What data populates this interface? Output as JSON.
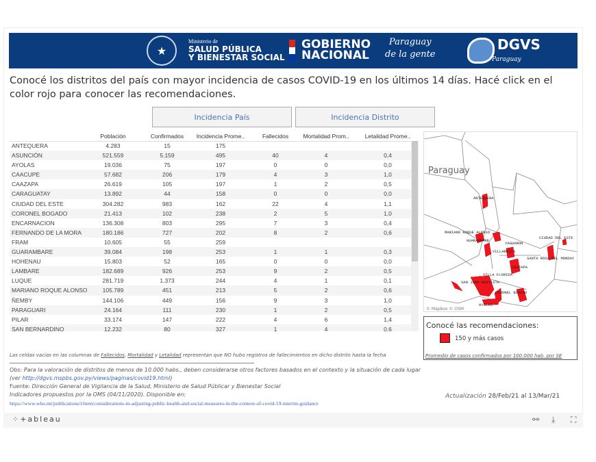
{
  "banner": {
    "ministry_small": "Ministerio de",
    "ministry_line1": "SALUD PÚBLICA",
    "ministry_line2": "Y BIENESTAR SOCIAL",
    "gob_line1": "GOBIERNO",
    "gob_line2": "NACIONAL",
    "slogan_line1": "Paraguay",
    "slogan_line2": "de la gente",
    "dgvs": "DGVS",
    "dgvs_sub": "Paraguay"
  },
  "heading": "Conocé los distritos del país con mayor incidencia de casos COVID-19 en los últimos 14 días. Hacé click en el color rojo para conocer las recomendaciones.",
  "tabs": [
    {
      "label": "Incidencia País"
    },
    {
      "label": "Incidencia Distrito"
    }
  ],
  "table": {
    "columns": [
      "",
      "Población",
      "Confirmados",
      "Incidencia Prome..",
      "Fallecidos",
      "Mortalidad Prom..",
      "Letalidad Prome.."
    ],
    "rows": [
      [
        "ANTEQUERA",
        "4.283",
        "15",
        "175",
        "",
        "",
        ""
      ],
      [
        "ASUNCIÓN",
        "521.559",
        "5.159",
        "495",
        "40",
        "4",
        "0,4"
      ],
      [
        "AYOLAS",
        "19.036",
        "75",
        "197",
        "0",
        "0",
        "0,0"
      ],
      [
        "CAACUPE",
        "57.682",
        "206",
        "179",
        "4",
        "3",
        "1,0"
      ],
      [
        "CAAZAPA",
        "26.619",
        "105",
        "197",
        "1",
        "2",
        "0,5"
      ],
      [
        "CARAGUATAY",
        "13.892",
        "44",
        "158",
        "0",
        "0",
        "0,0"
      ],
      [
        "CIUDAD DEL ESTE",
        "304.282",
        "983",
        "162",
        "22",
        "4",
        "1,1"
      ],
      [
        "CORONEL BOGADO",
        "21.413",
        "102",
        "238",
        "2",
        "5",
        "1,0"
      ],
      [
        "ENCARNACION",
        "136.308",
        "803",
        "295",
        "7",
        "3",
        "0,4"
      ],
      [
        "FERNANDO DE LA MORA",
        "180.186",
        "727",
        "202",
        "8",
        "2",
        "0,6"
      ],
      [
        "FRAM",
        "10.605",
        "55",
        "259",
        "",
        "",
        ""
      ],
      [
        "GUARAMBARE",
        "39.084",
        "198",
        "253",
        "1",
        "1",
        "0,3"
      ],
      [
        "HOHENAU",
        "15.803",
        "52",
        "165",
        "0",
        "0",
        "0,0"
      ],
      [
        "LAMBARE",
        "182.689",
        "926",
        "253",
        "9",
        "2",
        "0,5"
      ],
      [
        "LUQUE",
        "281.719",
        "1.373",
        "244",
        "4",
        "1",
        "0,1"
      ],
      [
        "MARIANO ROQUE ALONSO",
        "105.789",
        "451",
        "213",
        "5",
        "2",
        "0,6"
      ],
      [
        "ÑEMBY",
        "144.106",
        "449",
        "156",
        "9",
        "3",
        "1,0"
      ],
      [
        "PARAGUARI",
        "24.164",
        "111",
        "230",
        "1",
        "2",
        "0,5"
      ],
      [
        "PILAR",
        "33.174",
        "147",
        "222",
        "4",
        "6",
        "1,4"
      ],
      [
        "SAN BERNARDINO",
        "12.232",
        "80",
        "327",
        "1",
        "4",
        "0,6"
      ]
    ]
  },
  "map": {
    "country_label": "Paraguay",
    "attribution": "© Mapbox  © OSM",
    "highlight_color": "#f0141e",
    "labels": [
      "ANTEQUERA",
      "MARIANO ROQUE ALONSO",
      "GUARAMBARE",
      "YAGUARON",
      "VILLARRICA",
      "SANTA ROSA DEL MONDAY",
      "CIUDAD DEL ESTE",
      "CAAZAPA",
      "VILLA FLORIDA",
      "SAN JUAN BAUTISTA",
      "CORONEL BOGADO",
      "AYOLAS"
    ]
  },
  "legend": {
    "title": "Conocé las recomendaciones:",
    "item": "150 y más casos",
    "note": "Promedio de casos confirmados por 100.000 hab. por SE"
  },
  "footer": {
    "note_pre": "Las celdas vacías en las columnas de ",
    "note_f": "Fallecidos",
    "note_sep1": ", ",
    "note_m": "Mortalidad",
    "note_sep2": " y ",
    "note_l": "Letalidad",
    "note_post": " representan que NO hubo registros de fallecimientos en dicho distrito hasta la fecha",
    "obs_label": "Obs:",
    "obs_text": " Para la valoración de distritos de menos de 10.000 habs., deben considerarse otros factores basados en el contexto y la situación de cada lugar",
    "ver_pre": "(ver ",
    "ver_link": "http://dgvs.mspbs.gov.py/views/paginas/covid19.html",
    "ver_post": ")",
    "fuente_label": "Fuente:",
    "fuente_text": " Dirección General de Vigilancia de la Salud, Ministerio de Salud Públicar y Bienestar Social",
    "indicadores": "Indicadores propuestos por la OMS (04/11/2020). Disponible en:",
    "who_link": "https://www.who.int/publications/i/item/considerations-in-adjusting-public-health-and-social-measures-in-the-context-of-covid-19-interim-guidance",
    "upd_label": "Actualización",
    "upd_value": " 28/Feb/21 al 13/Mar/21"
  },
  "toolbar": {
    "logo": "⁘+ableau",
    "icons": [
      "share-icon",
      "download-icon",
      "fullscreen-icon"
    ]
  }
}
